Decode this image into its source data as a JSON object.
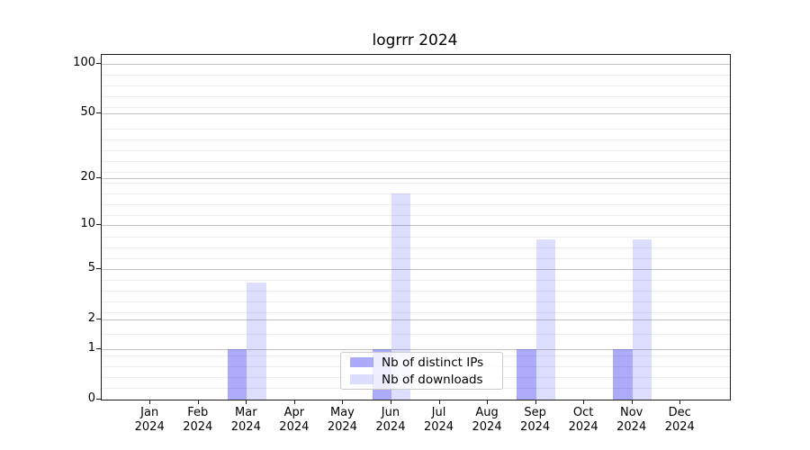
{
  "chart_data": {
    "type": "bar",
    "title": "logrrr 2024",
    "categories": [
      "Jan",
      "Feb",
      "Mar",
      "Apr",
      "May",
      "Jun",
      "Jul",
      "Aug",
      "Sep",
      "Oct",
      "Nov",
      "Dec"
    ],
    "x_year": "2024",
    "series": [
      {
        "name": "Nb of distinct IPs",
        "color": "#2d2df0",
        "alpha": 0.4,
        "values": [
          0,
          0,
          1,
          0,
          0,
          1,
          0,
          0,
          1,
          0,
          1,
          0
        ]
      },
      {
        "name": "Nb of downloads",
        "color": "#2d2df0",
        "alpha": 0.16,
        "values": [
          0,
          0,
          4,
          0,
          0,
          16,
          0,
          0,
          8,
          0,
          8,
          0
        ]
      }
    ],
    "y_ticks": [
      0,
      1,
      2,
      5,
      10,
      20,
      50,
      100
    ],
    "y_scale": "log1p",
    "ylim": [
      0,
      113
    ],
    "xlabel": "",
    "ylabel": "",
    "grid": true,
    "legend_position": "lower center",
    "colors": {
      "bar_dark_on_white": "#a7a7f9",
      "bar_light_on_white": "#dedefc",
      "grid_major": "#c3c3c3",
      "grid_minor": "#ededed",
      "axis": "#1a1a1a",
      "legend_border": "#cccccc"
    }
  }
}
